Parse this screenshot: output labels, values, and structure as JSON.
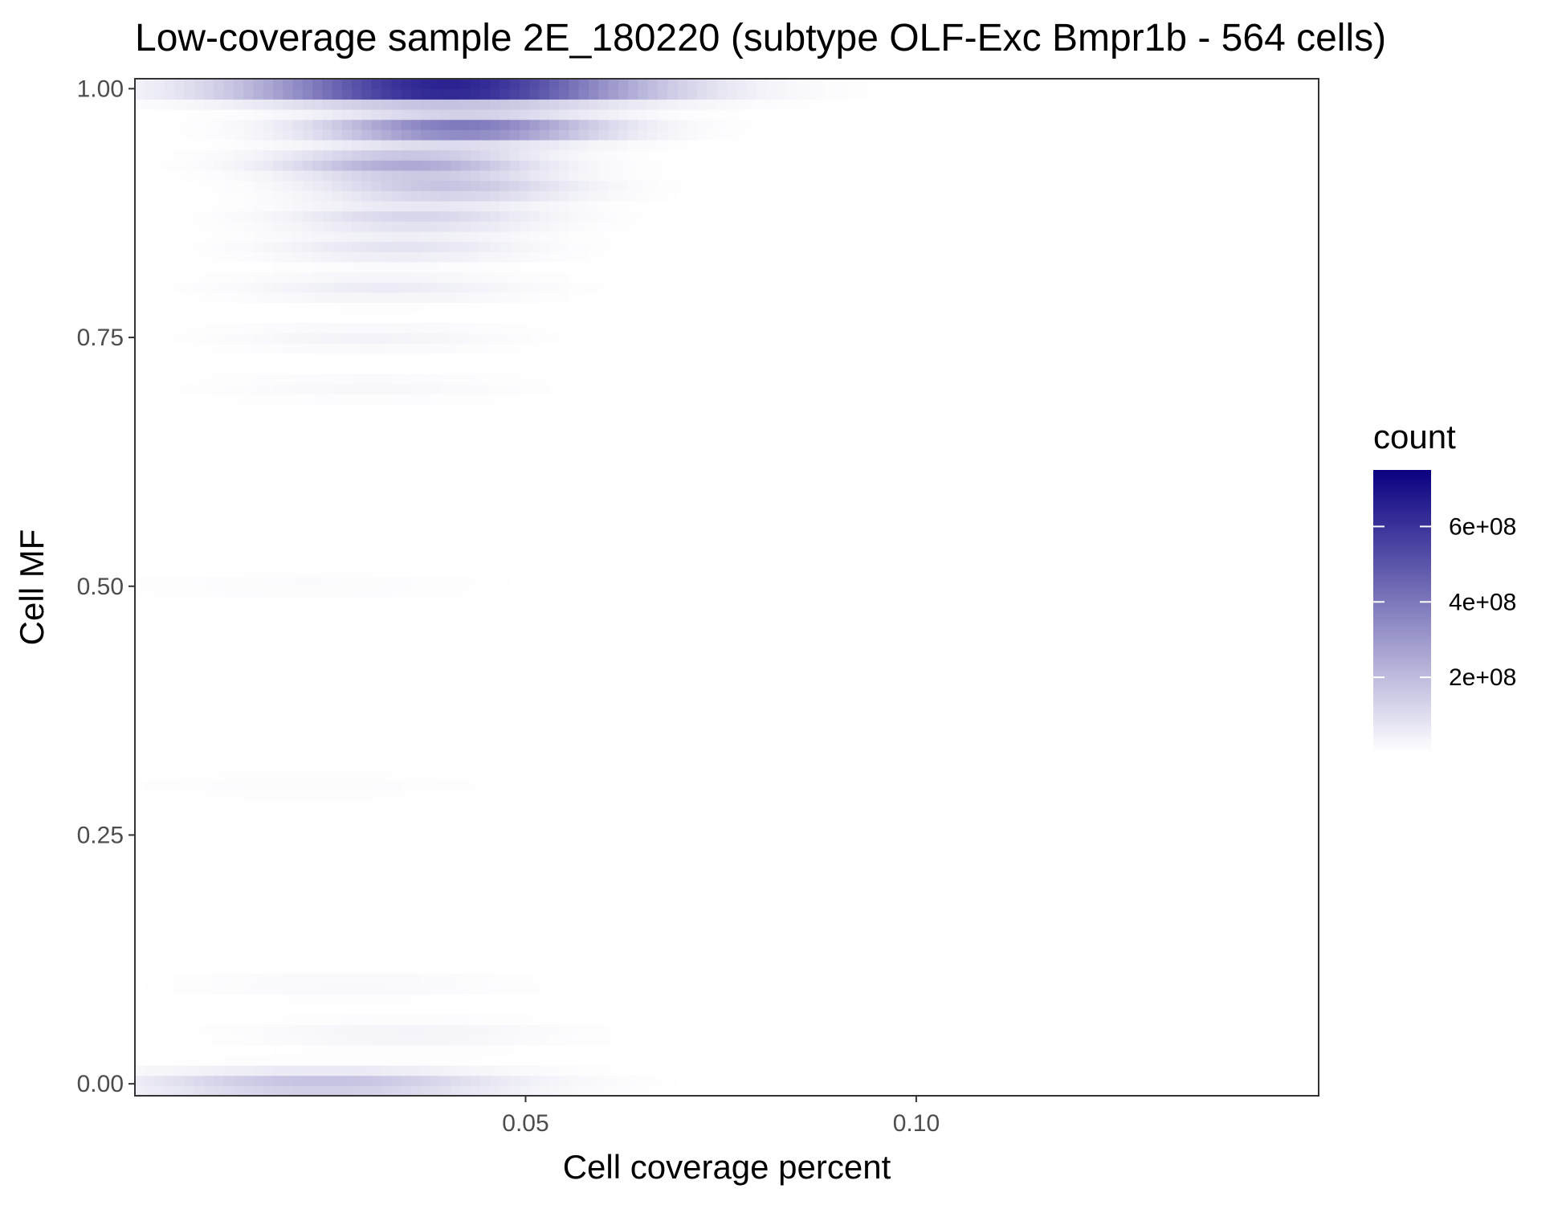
{
  "chart_data": {
    "type": "heatmap",
    "title": "Low-coverage sample 2E_180220 (subtype OLF-Exc Bmpr1b - 564 cells)",
    "xlabel": "Cell coverage percent",
    "ylabel": "Cell MF",
    "xlim": [
      0.0,
      0.1515
    ],
    "ylim": [
      -0.012,
      1.01
    ],
    "x_ticks": [
      0.05,
      0.1
    ],
    "x_tick_labels": [
      "0.05",
      "0.10"
    ],
    "y_ticks": [
      0.0,
      0.25,
      0.5,
      0.75,
      1.0
    ],
    "y_tick_labels": [
      "0.00",
      "0.25",
      "0.50",
      "0.75",
      "1.00"
    ],
    "grid": false,
    "legend": {
      "title": "count",
      "placement": "right",
      "min": 0,
      "max": 750000000,
      "ticks": [
        200000000,
        400000000,
        600000000
      ],
      "tick_labels": [
        "2e+08",
        "4e+08",
        "6e+08"
      ],
      "color_low": "#ffffff",
      "color_high": "#0a0080"
    },
    "density_bands": [
      {
        "y": 1.0,
        "x_center": 0.04,
        "x_spread": 0.017,
        "peak": 750000000
      },
      {
        "y": 0.0,
        "x_center": 0.024,
        "x_spread": 0.016,
        "peak": 190000000
      },
      {
        "y": 0.96,
        "x_center": 0.042,
        "x_spread": 0.012,
        "peak": 430000000
      },
      {
        "y": 0.925,
        "x_center": 0.035,
        "x_spread": 0.011,
        "peak": 250000000
      },
      {
        "y": 0.9,
        "x_center": 0.04,
        "x_spread": 0.011,
        "peak": 170000000
      },
      {
        "y": 0.87,
        "x_center": 0.036,
        "x_spread": 0.011,
        "peak": 120000000
      },
      {
        "y": 0.84,
        "x_center": 0.034,
        "x_spread": 0.011,
        "peak": 80000000
      },
      {
        "y": 0.8,
        "x_center": 0.032,
        "x_spread": 0.012,
        "peak": 55000000
      },
      {
        "y": 0.75,
        "x_center": 0.03,
        "x_spread": 0.012,
        "peak": 35000000
      },
      {
        "y": 0.7,
        "x_center": 0.03,
        "x_spread": 0.013,
        "peak": 22000000
      },
      {
        "y": 0.5,
        "x_center": 0.022,
        "x_spread": 0.016,
        "peak": 12000000
      },
      {
        "y": 0.3,
        "x_center": 0.022,
        "x_spread": 0.016,
        "peak": 10000000
      },
      {
        "y": 0.1,
        "x_center": 0.028,
        "x_spread": 0.014,
        "peak": 20000000
      },
      {
        "y": 0.05,
        "x_center": 0.035,
        "x_spread": 0.013,
        "peak": 35000000
      }
    ]
  }
}
